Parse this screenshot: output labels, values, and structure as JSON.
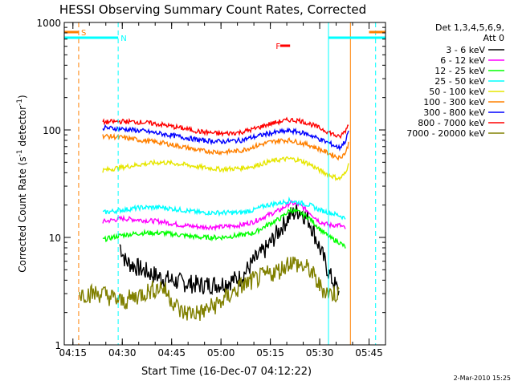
{
  "chart_data": {
    "type": "line",
    "title": "HESSI Observing Summary Count Rates, Corrected",
    "xlabel": "Start Time (16-Dec-07 04:12:22)",
    "ylabel": "Corrected Count Rate (s",
    "ylabel_sup1": "-1",
    "ylabel_mid": " detector",
    "ylabel_sup2": "-1",
    "ylabel_end": ")",
    "y_scale": "log",
    "ylim": [
      1,
      1000
    ],
    "xlim": [
      "04:12:22",
      "05:50:00"
    ],
    "x_ticks": [
      "04:15",
      "04:30",
      "04:45",
      "05:00",
      "05:15",
      "05:30",
      "05:45"
    ],
    "y_ticks": [
      {
        "value": 1,
        "label": "1"
      },
      {
        "value": 10,
        "label": "10"
      },
      {
        "value": 100,
        "label": "100"
      },
      {
        "value": 1000,
        "label": "1000"
      }
    ],
    "grid": false,
    "legend_position": "right",
    "legend_header": [
      "Det 1,3,4,5,6,9,",
      "Att 0"
    ],
    "series": [
      {
        "name": "3 - 6 keV",
        "color": "#000000",
        "points": [
          [
            "04:29",
            9
          ],
          [
            "04:31",
            6
          ],
          [
            "04:36",
            5
          ],
          [
            "04:42",
            4.2
          ],
          [
            "04:48",
            3.8
          ],
          [
            "04:54",
            3.6
          ],
          [
            "05:00",
            3.7
          ],
          [
            "05:06",
            4.2
          ],
          [
            "05:10",
            6
          ],
          [
            "05:14",
            8
          ],
          [
            "05:18",
            12
          ],
          [
            "05:21",
            16
          ],
          [
            "05:24",
            18
          ],
          [
            "05:27",
            14
          ],
          [
            "05:30",
            8
          ],
          [
            "05:33",
            4.5
          ],
          [
            "05:36",
            3
          ]
        ]
      },
      {
        "name": "6 - 12 keV",
        "color": "#ff00ff",
        "points": [
          [
            "04:24",
            14
          ],
          [
            "04:30",
            15
          ],
          [
            "04:36",
            14.5
          ],
          [
            "04:42",
            14
          ],
          [
            "04:48",
            13
          ],
          [
            "04:54",
            12.5
          ],
          [
            "05:00",
            12.5
          ],
          [
            "05:06",
            13
          ],
          [
            "05:10",
            14
          ],
          [
            "05:14",
            16
          ],
          [
            "05:18",
            18
          ],
          [
            "05:21",
            21
          ],
          [
            "05:24",
            20
          ],
          [
            "05:27",
            17
          ],
          [
            "05:30",
            14
          ],
          [
            "05:33",
            13
          ],
          [
            "05:36",
            13
          ],
          [
            "05:38",
            12
          ]
        ]
      },
      {
        "name": "12 - 25 keV",
        "color": "#00ff00",
        "points": [
          [
            "04:24",
            9.5
          ],
          [
            "04:30",
            10.5
          ],
          [
            "04:36",
            11
          ],
          [
            "04:42",
            11
          ],
          [
            "04:48",
            10.5
          ],
          [
            "04:54",
            10
          ],
          [
            "05:00",
            10
          ],
          [
            "05:06",
            10.5
          ],
          [
            "05:10",
            11
          ],
          [
            "05:14",
            13
          ],
          [
            "05:18",
            15
          ],
          [
            "05:21",
            18
          ],
          [
            "05:24",
            17
          ],
          [
            "05:27",
            15
          ],
          [
            "05:30",
            12
          ],
          [
            "05:33",
            10
          ],
          [
            "05:36",
            9
          ],
          [
            "05:38",
            8
          ]
        ]
      },
      {
        "name": "25 - 50 keV",
        "color": "#00ffff",
        "points": [
          [
            "04:24",
            17
          ],
          [
            "04:30",
            18
          ],
          [
            "04:36",
            19
          ],
          [
            "04:42",
            19
          ],
          [
            "04:48",
            18
          ],
          [
            "04:54",
            17
          ],
          [
            "05:00",
            17
          ],
          [
            "05:06",
            17
          ],
          [
            "05:10",
            18
          ],
          [
            "05:14",
            20
          ],
          [
            "05:18",
            21
          ],
          [
            "05:21",
            22
          ],
          [
            "05:24",
            21
          ],
          [
            "05:27",
            20
          ],
          [
            "05:30",
            18
          ],
          [
            "05:33",
            17
          ],
          [
            "05:36",
            16
          ],
          [
            "05:38",
            15
          ]
        ]
      },
      {
        "name": "50 - 100 keV",
        "color": "#e6e600",
        "points": [
          [
            "04:24",
            42
          ],
          [
            "04:30",
            45
          ],
          [
            "04:36",
            48
          ],
          [
            "04:42",
            50
          ],
          [
            "04:48",
            48
          ],
          [
            "04:54",
            45
          ],
          [
            "05:00",
            43
          ],
          [
            "05:06",
            44
          ],
          [
            "05:10",
            46
          ],
          [
            "05:14",
            50
          ],
          [
            "05:18",
            53
          ],
          [
            "05:21",
            54
          ],
          [
            "05:24",
            52
          ],
          [
            "05:27",
            48
          ],
          [
            "05:30",
            42
          ],
          [
            "05:33",
            38
          ],
          [
            "05:36",
            35
          ],
          [
            "05:38",
            40
          ],
          [
            "05:39",
            55
          ]
        ]
      },
      {
        "name": "100 - 300 keV",
        "color": "#ff8000",
        "points": [
          [
            "04:24",
            88
          ],
          [
            "04:30",
            85
          ],
          [
            "04:36",
            80
          ],
          [
            "04:42",
            76
          ],
          [
            "04:48",
            70
          ],
          [
            "04:54",
            64
          ],
          [
            "05:00",
            62
          ],
          [
            "05:06",
            64
          ],
          [
            "05:10",
            70
          ],
          [
            "05:14",
            76
          ],
          [
            "05:18",
            80
          ],
          [
            "05:21",
            80
          ],
          [
            "05:24",
            76
          ],
          [
            "05:27",
            72
          ],
          [
            "05:30",
            66
          ],
          [
            "05:33",
            60
          ],
          [
            "05:36",
            55
          ],
          [
            "05:38",
            62
          ],
          [
            "05:39",
            80
          ]
        ]
      },
      {
        "name": "300 - 800 keV",
        "color": "#0000ff",
        "points": [
          [
            "04:24",
            105
          ],
          [
            "04:30",
            102
          ],
          [
            "04:36",
            98
          ],
          [
            "04:42",
            92
          ],
          [
            "04:48",
            86
          ],
          [
            "04:54",
            80
          ],
          [
            "05:00",
            78
          ],
          [
            "05:06",
            80
          ],
          [
            "05:10",
            86
          ],
          [
            "05:14",
            92
          ],
          [
            "05:18",
            96
          ],
          [
            "05:21",
            98
          ],
          [
            "05:24",
            95
          ],
          [
            "05:27",
            90
          ],
          [
            "05:30",
            82
          ],
          [
            "05:33",
            75
          ],
          [
            "05:36",
            68
          ],
          [
            "05:38",
            80
          ],
          [
            "05:39",
            105
          ]
        ]
      },
      {
        "name": "800 - 7000 keV",
        "color": "#ff0000",
        "points": [
          [
            "04:24",
            118
          ],
          [
            "04:30",
            120
          ],
          [
            "04:36",
            118
          ],
          [
            "04:42",
            112
          ],
          [
            "04:48",
            104
          ],
          [
            "04:54",
            96
          ],
          [
            "05:00",
            92
          ],
          [
            "05:06",
            95
          ],
          [
            "05:10",
            102
          ],
          [
            "05:14",
            112
          ],
          [
            "05:18",
            120
          ],
          [
            "05:21",
            124
          ],
          [
            "05:24",
            122
          ],
          [
            "05:27",
            114
          ],
          [
            "05:30",
            104
          ],
          [
            "05:33",
            95
          ],
          [
            "05:36",
            85
          ],
          [
            "05:38",
            100
          ],
          [
            "05:39",
            120
          ]
        ]
      },
      {
        "name": "7000 - 20000 keV",
        "color": "#808000",
        "points": [
          [
            "04:17",
            3
          ],
          [
            "04:24",
            3
          ],
          [
            "04:30",
            2.5
          ],
          [
            "04:36",
            3
          ],
          [
            "04:42",
            3.5
          ],
          [
            "04:48",
            2
          ],
          [
            "04:54",
            2
          ],
          [
            "05:00",
            2.5
          ],
          [
            "05:06",
            3.5
          ],
          [
            "05:10",
            4
          ],
          [
            "05:14",
            4.5
          ],
          [
            "05:18",
            5
          ],
          [
            "05:21",
            6
          ],
          [
            "05:24",
            5.5
          ],
          [
            "05:27",
            5
          ],
          [
            "05:30",
            3.5
          ],
          [
            "05:33",
            3
          ],
          [
            "05:36",
            3
          ]
        ]
      }
    ],
    "annotations": [
      {
        "label": "S",
        "color": "#ff8000"
      },
      {
        "label": "N",
        "color": "#00ffff"
      },
      {
        "label": "F",
        "color": "#ff0000"
      }
    ],
    "footer_date": "2-Mar-2010 15:25"
  }
}
